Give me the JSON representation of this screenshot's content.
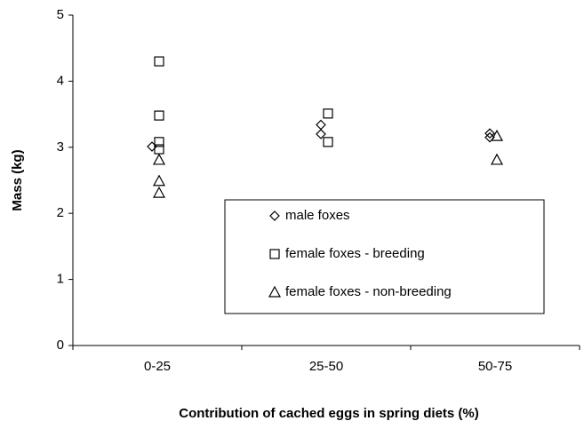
{
  "chart_data": {
    "type": "scatter",
    "xlabel": "Contribution of cached eggs in spring diets (%)",
    "ylabel": "Mass (kg)",
    "categories": [
      "0-25",
      "25-50",
      "50-75"
    ],
    "ylim": [
      0,
      5
    ],
    "yticks": [
      0,
      1,
      2,
      3,
      4,
      5
    ],
    "legend": "lower right",
    "series": [
      {
        "name": "male foxes",
        "marker": "diamond",
        "color": "#000000",
        "x": [
          "0-25",
          "25-50",
          "25-50",
          "50-75",
          "50-75"
        ],
        "values": [
          3.01,
          3.34,
          3.2,
          3.21,
          3.15
        ]
      },
      {
        "name": "female foxes - breeding",
        "marker": "square",
        "color": "#000000",
        "x": [
          "0-25",
          "0-25",
          "0-25",
          "0-25",
          "25-50",
          "25-50"
        ],
        "values": [
          4.3,
          3.48,
          3.08,
          2.97,
          3.51,
          3.08
        ]
      },
      {
        "name": "female foxes - non-breeding",
        "marker": "triangle",
        "color": "#000000",
        "x": [
          "0-25",
          "0-25",
          "0-25",
          "50-75",
          "50-75"
        ],
        "values": [
          2.81,
          2.49,
          2.31,
          3.17,
          2.81
        ]
      }
    ]
  }
}
